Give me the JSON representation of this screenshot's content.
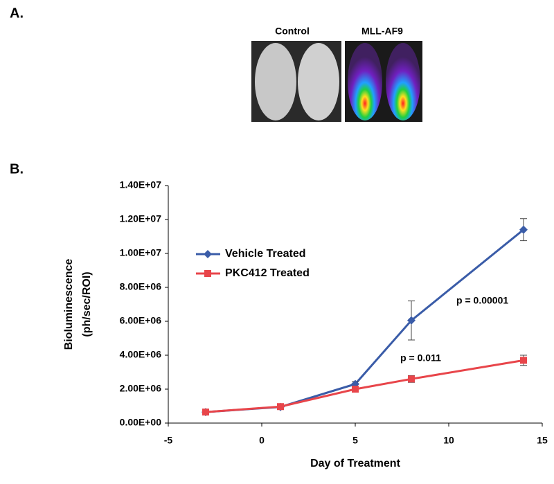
{
  "panels": {
    "a": "A.",
    "b": "B."
  },
  "images": {
    "left_label": "Control",
    "right_label": "MLL-AF9"
  },
  "chart_data": {
    "type": "line",
    "xlabel": "Day of Treatment",
    "ylabel": [
      "Bioluminescence",
      "(ph/sec/ROI)"
    ],
    "x": [
      -3,
      1,
      5,
      8,
      14
    ],
    "series": [
      {
        "name": "Vehicle Treated",
        "color": "#3a5ca8",
        "marker": "diamond",
        "values": [
          650000,
          950000,
          2300000,
          6050000,
          11400000
        ],
        "errors": [
          100000,
          100000,
          150000,
          1150000,
          650000
        ]
      },
      {
        "name": "PKC412 Treated",
        "color": "#e8454a",
        "marker": "square",
        "values": [
          650000,
          970000,
          2000000,
          2600000,
          3700000
        ],
        "errors": [
          100000,
          120000,
          150000,
          200000,
          300000
        ]
      }
    ],
    "xlim": [
      -5,
      15
    ],
    "xticks": [
      -5,
      0,
      5,
      10,
      15
    ],
    "ylim": [
      0,
      14000000
    ],
    "yticks": [
      {
        "value": 0,
        "label": "0.00E+00"
      },
      {
        "value": 2000000,
        "label": "2.00E+06"
      },
      {
        "value": 4000000,
        "label": "4.00E+06"
      },
      {
        "value": 6000000,
        "label": "6.00E+06"
      },
      {
        "value": 8000000,
        "label": "8.00E+06"
      },
      {
        "value": 10000000,
        "label": "1.00E+07"
      },
      {
        "value": 12000000,
        "label": "1.20E+07"
      },
      {
        "value": 14000000,
        "label": "1.40E+07"
      }
    ],
    "annotations": [
      {
        "text": "p = 0.00001",
        "x": 11.8,
        "y": 7200000
      },
      {
        "text": "p = 0.011",
        "x": 8.5,
        "y": 3800000
      }
    ],
    "legend": "upper left"
  }
}
